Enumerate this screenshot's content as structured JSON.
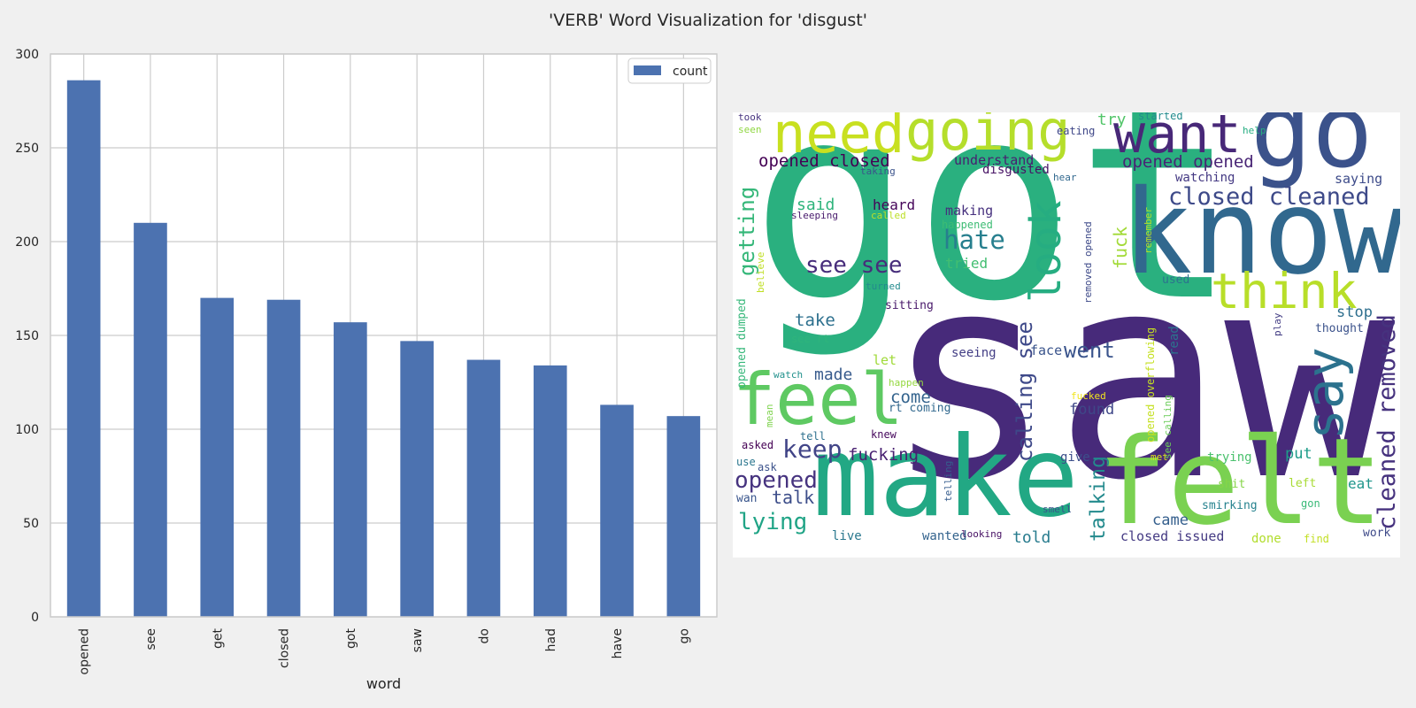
{
  "figure": {
    "title": "'VERB' Word Visualization for 'disgust'"
  },
  "chart_data": [
    {
      "type": "bar",
      "xlabel": "word",
      "ylabel": "",
      "categories": [
        "opened",
        "see",
        "get",
        "closed",
        "got",
        "saw",
        "do",
        "had",
        "have",
        "go"
      ],
      "series": [
        {
          "name": "count",
          "values": [
            286,
            210,
            170,
            169,
            157,
            147,
            137,
            134,
            113,
            107
          ],
          "color": "#4c72b0"
        }
      ],
      "ylim": [
        0,
        300
      ],
      "yticks": [
        0,
        50,
        100,
        150,
        200,
        250,
        300
      ],
      "grid": true,
      "legend": "top-right",
      "background": "#ffffff",
      "grid_color": "#cccccc"
    }
  ],
  "wordcloud": {
    "background": "#ffffff",
    "words": [
      {
        "text": "got",
        "color": "#2ab07f"
      },
      {
        "text": "saw",
        "color": "#472a7a"
      },
      {
        "text": "make",
        "color": "#22a884"
      },
      {
        "text": "felt",
        "color": "#7ad151"
      },
      {
        "text": "know",
        "color": "#31688e"
      },
      {
        "text": "go",
        "color": "#3b528b"
      },
      {
        "text": "need",
        "color": "#c8e020"
      },
      {
        "text": "going",
        "color": "#b5de2b"
      },
      {
        "text": "want",
        "color": "#482878"
      },
      {
        "text": "feel",
        "color": "#5ec962"
      },
      {
        "text": "think",
        "color": "#b8de29"
      },
      {
        "text": "say",
        "color": "#2c728e"
      },
      {
        "text": "look",
        "color": "#26ad81"
      },
      {
        "text": "closed cleaned",
        "color": "#3e4a89"
      },
      {
        "text": "cleaned removed",
        "color": "#46327e"
      },
      {
        "text": "opened closed",
        "color": "#440154"
      },
      {
        "text": "opened opened",
        "color": "#482475"
      },
      {
        "text": "hate",
        "color": "#277f8e"
      },
      {
        "text": "see see",
        "color": "#472d7b"
      },
      {
        "text": "getting",
        "color": "#35b779"
      },
      {
        "text": "calling see",
        "color": "#3e4989"
      },
      {
        "text": "keep",
        "color": "#414487"
      },
      {
        "text": "opened",
        "color": "#46337f"
      },
      {
        "text": "lying",
        "color": "#20a486"
      },
      {
        "text": "talking",
        "color": "#238a8d"
      },
      {
        "text": "went",
        "color": "#3a548c"
      },
      {
        "text": "fucking",
        "color": "#482071"
      },
      {
        "text": "take",
        "color": "#2d708e"
      },
      {
        "text": "talk",
        "color": "#3d4e8a"
      },
      {
        "text": "fuck",
        "color": "#a2da37"
      },
      {
        "text": "try",
        "color": "#52c569"
      },
      {
        "text": "stop",
        "color": "#2e6f8e"
      },
      {
        "text": "said",
        "color": "#2fb47c"
      },
      {
        "text": "heard",
        "color": "#450559"
      },
      {
        "text": "making",
        "color": "#46307e"
      },
      {
        "text": "understand",
        "color": "#481f70"
      },
      {
        "text": "disgusted",
        "color": "#471365"
      },
      {
        "text": "watching",
        "color": "#443983"
      },
      {
        "text": "saying",
        "color": "#3e4c8a"
      },
      {
        "text": "made",
        "color": "#375a8c"
      },
      {
        "text": "come",
        "color": "#33638d"
      },
      {
        "text": "found",
        "color": "#3f4788"
      },
      {
        "text": "face",
        "color": "#3a548c"
      },
      {
        "text": "seeing",
        "color": "#433e85"
      },
      {
        "text": "told",
        "color": "#287c8e"
      },
      {
        "text": "came",
        "color": "#355f8d"
      },
      {
        "text": "closed issued",
        "color": "#443a83"
      },
      {
        "text": "tried",
        "color": "#42be71"
      },
      {
        "text": "put",
        "color": "#1e9c89"
      },
      {
        "text": "eat",
        "color": "#1f968b"
      },
      {
        "text": "read",
        "color": "#2c738e"
      },
      {
        "text": "thought",
        "color": "#3b528b"
      },
      {
        "text": "let",
        "color": "#a0da39"
      },
      {
        "text": "give",
        "color": "#3c4f8a"
      },
      {
        "text": "trying",
        "color": "#4ac16d"
      },
      {
        "text": "used",
        "color": "#2c738e"
      },
      {
        "text": "live",
        "color": "#2a788e"
      },
      {
        "text": "wanted",
        "color": "#33638d"
      },
      {
        "text": "done",
        "color": "#b2dd2d"
      },
      {
        "text": "work",
        "color": "#3e4a89"
      },
      {
        "text": "happened",
        "color": "#3dbc74"
      },
      {
        "text": "sitting",
        "color": "#48186a"
      },
      {
        "text": "rt coming",
        "color": "#31688e"
      },
      {
        "text": "tell",
        "color": "#2d708e"
      },
      {
        "text": "knew",
        "color": "#46085c"
      },
      {
        "text": "asked",
        "color": "#440154"
      },
      {
        "text": "use",
        "color": "#2a768e"
      },
      {
        "text": "ask",
        "color": "#3b528b"
      },
      {
        "text": "wan",
        "color": "#39558c"
      },
      {
        "text": "shit",
        "color": "#86d549"
      },
      {
        "text": "left",
        "color": "#a8db34"
      },
      {
        "text": "gon",
        "color": "#38b977"
      },
      {
        "text": "smirking",
        "color": "#26828e"
      },
      {
        "text": "smell",
        "color": "#3b528b"
      },
      {
        "text": "looking",
        "color": "#471164"
      },
      {
        "text": "telling",
        "color": "#365d8d"
      },
      {
        "text": "find",
        "color": "#c2df23"
      },
      {
        "text": "took",
        "color": "#46337f"
      },
      {
        "text": "seen",
        "color": "#90d743"
      },
      {
        "text": "started",
        "color": "#228b8d"
      },
      {
        "text": "eating",
        "color": "#3f4788"
      },
      {
        "text": "help",
        "color": "#26ad81"
      },
      {
        "text": "taking",
        "color": "#3b528b"
      },
      {
        "text": "hear",
        "color": "#31688e"
      },
      {
        "text": "sleeping",
        "color": "#481a6c"
      },
      {
        "text": "called",
        "color": "#bddf26"
      },
      {
        "text": "turned",
        "color": "#238a8d"
      },
      {
        "text": "believe",
        "color": "#c0df25"
      },
      {
        "text": "see rt",
        "color": "#2fb47c"
      },
      {
        "text": "watch",
        "color": "#21918c"
      },
      {
        "text": "happen",
        "color": "#95d840"
      },
      {
        "text": "fucked",
        "color": "#f1e51d"
      },
      {
        "text": "mean",
        "color": "#7fd34e"
      },
      {
        "text": "met",
        "color": "#dde318"
      },
      {
        "text": "play",
        "color": "#433d84"
      },
      {
        "text": "remember",
        "color": "#b5de2b"
      },
      {
        "text": "removed opened",
        "color": "#3e4a89"
      },
      {
        "text": "opened dumped",
        "color": "#35b779"
      },
      {
        "text": "opened overflowing",
        "color": "#c5e021"
      },
      {
        "text": "see calling",
        "color": "#6ccd5a"
      }
    ]
  }
}
